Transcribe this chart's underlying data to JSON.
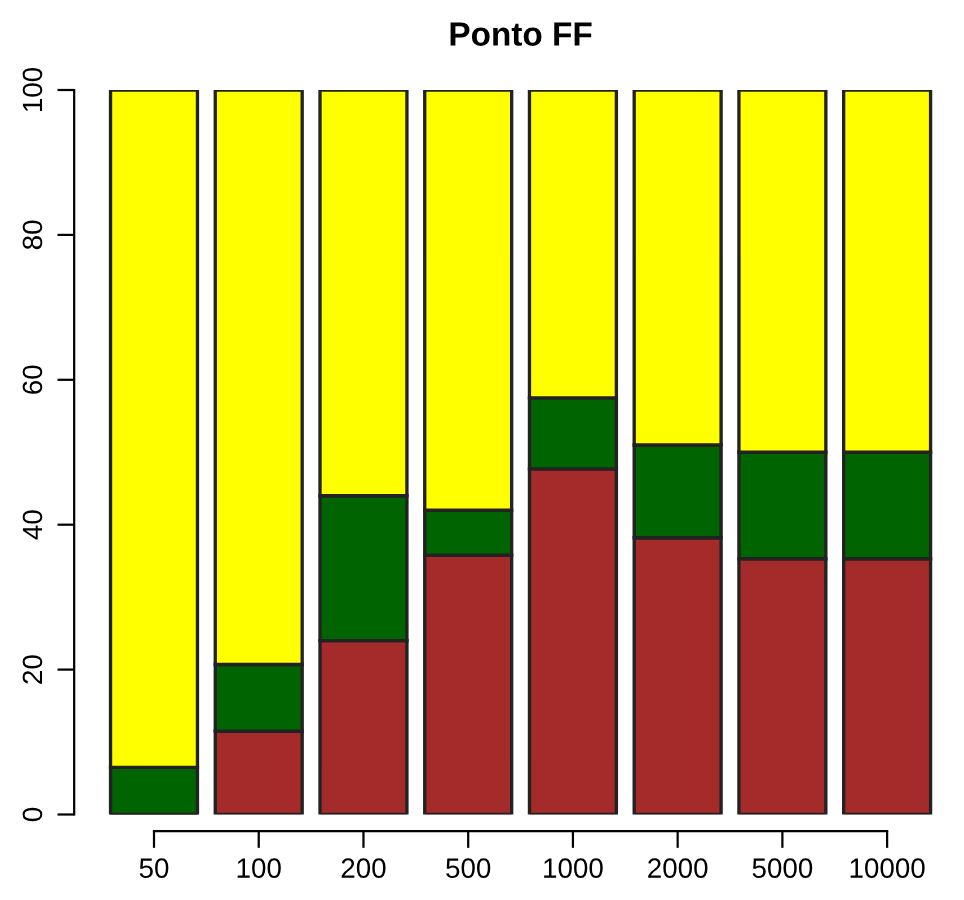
{
  "chart_data": {
    "type": "bar",
    "title": "Ponto FF",
    "stacked": true,
    "categories": [
      "50",
      "100",
      "200",
      "500",
      "1000",
      "2000",
      "5000",
      "10000"
    ],
    "series": [
      {
        "color": "#a52a2a",
        "values": [
          0,
          11.5,
          24,
          35.8,
          47.7,
          38.2,
          35.3,
          35.3
        ]
      },
      {
        "color": "#006400",
        "values": [
          6.5,
          9.2,
          20,
          6.2,
          9.8,
          12.8,
          14.7,
          14.7
        ]
      },
      {
        "color": "#ffff00",
        "values": [
          93.5,
          79.3,
          56,
          58,
          42.5,
          49,
          50,
          50
        ]
      }
    ],
    "ylim": [
      0,
      100
    ],
    "yticks": [
      0,
      20,
      40,
      60,
      80,
      100
    ],
    "grid": false,
    "legend": false
  }
}
